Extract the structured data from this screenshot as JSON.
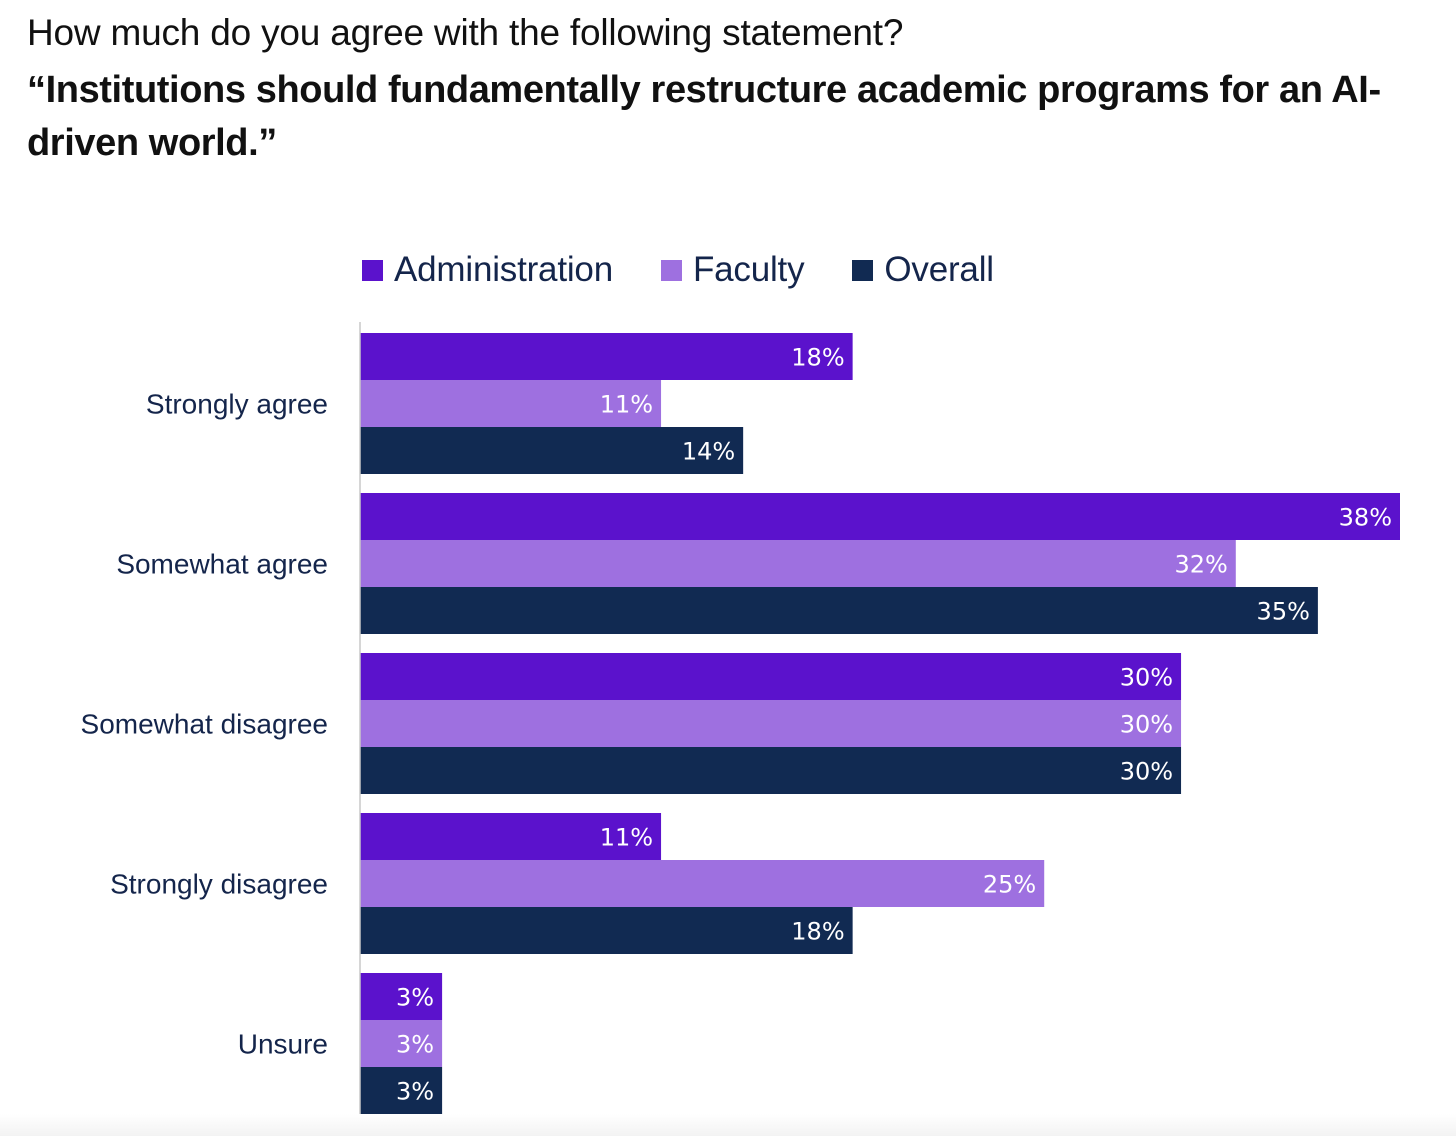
{
  "subtitle": "How much do you agree with the following statement?",
  "title": "“Institutions should fundamentally restructure academic programs for an AI-driven world.”",
  "chart_data": {
    "type": "bar",
    "orientation": "horizontal",
    "title": "“Institutions should fundamentally restructure academic programs for an AI-driven world.”",
    "subtitle": "How much do you agree with the following statement?",
    "categories": [
      "Strongly agree",
      "Somewhat agree",
      "Somewhat disagree",
      "Strongly disagree",
      "Unsure"
    ],
    "series": [
      {
        "name": "Administration",
        "color": "#5b12cc",
        "values": [
          18,
          38,
          30,
          11,
          3
        ]
      },
      {
        "name": "Faculty",
        "color": "#9e70e0",
        "values": [
          11,
          32,
          30,
          25,
          3
        ]
      },
      {
        "name": "Overall",
        "color": "#112a52",
        "values": [
          14,
          35,
          30,
          18,
          3
        ]
      }
    ],
    "value_suffix": "%",
    "xlim": [
      0,
      38
    ],
    "xlabel": "",
    "ylabel": "",
    "grid": false,
    "legend_position": "top"
  }
}
